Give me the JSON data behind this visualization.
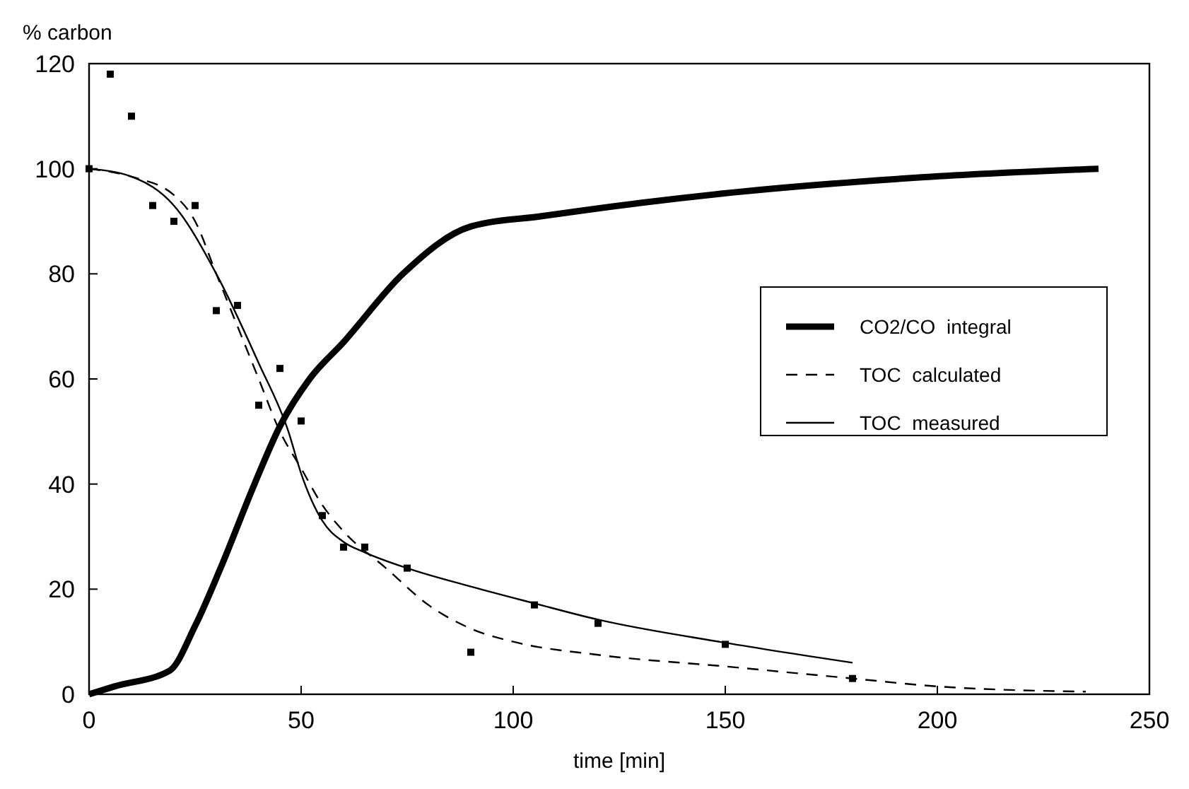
{
  "chart_data": {
    "type": "line",
    "xlabel": "time [min]",
    "ylabel": "% carbon",
    "xlim": [
      0,
      250
    ],
    "ylim": [
      0,
      120
    ],
    "xticks": [
      0,
      50,
      100,
      150,
      200,
      250
    ],
    "yticks": [
      0,
      20,
      40,
      60,
      80,
      100,
      120
    ],
    "grid": false,
    "legend": "right",
    "series": [
      {
        "name": "CO2/CO  integral",
        "color": "#000000",
        "line_style": "solid",
        "marker": "none",
        "x": [
          0,
          6,
          19,
          25,
          31,
          39,
          45,
          52,
          60,
          74,
          90,
          107,
          130,
          152,
          197,
          238
        ],
        "values": [
          0,
          1.5,
          4.5,
          13,
          24,
          40,
          51,
          60,
          67,
          80,
          89,
          91,
          93.5,
          95.5,
          98.4,
          100
        ]
      },
      {
        "name": "TOC  calculated",
        "color": "#000000",
        "line_style": "dashed",
        "marker": "none",
        "x": [
          0,
          10,
          20,
          25,
          30,
          40,
          45,
          50,
          55,
          60,
          70,
          80,
          90,
          100,
          120,
          150,
          180,
          200,
          235
        ],
        "values": [
          100,
          98.5,
          95,
          90,
          80,
          60,
          50,
          43,
          36,
          31,
          24,
          17,
          12.5,
          10,
          7.5,
          5.3,
          3,
          1.5,
          0.5
        ]
      },
      {
        "name": "TOC  measured",
        "color": "#000000",
        "line_style": "solid",
        "marker": "none",
        "x": [
          0,
          10,
          20,
          30,
          40,
          47,
          50,
          55,
          60,
          65,
          75,
          90,
          105,
          120,
          150,
          180
        ],
        "values": [
          100,
          98.5,
          93,
          80,
          63,
          50,
          42,
          33,
          29,
          27,
          24,
          20.5,
          17.3,
          14.2,
          9.8,
          6
        ]
      },
      {
        "type": "scatter",
        "color": "#000000",
        "marker": "square",
        "x": [
          0,
          5,
          10,
          15,
          20,
          25,
          30,
          35,
          40,
          45,
          50,
          55,
          60,
          65,
          75,
          90,
          105,
          120,
          150,
          180
        ],
        "values": [
          100,
          118,
          110,
          93,
          90,
          93,
          73,
          74,
          55,
          62,
          52,
          34,
          28,
          28,
          24,
          8,
          17,
          13.5,
          9.5,
          3
        ]
      }
    ]
  }
}
